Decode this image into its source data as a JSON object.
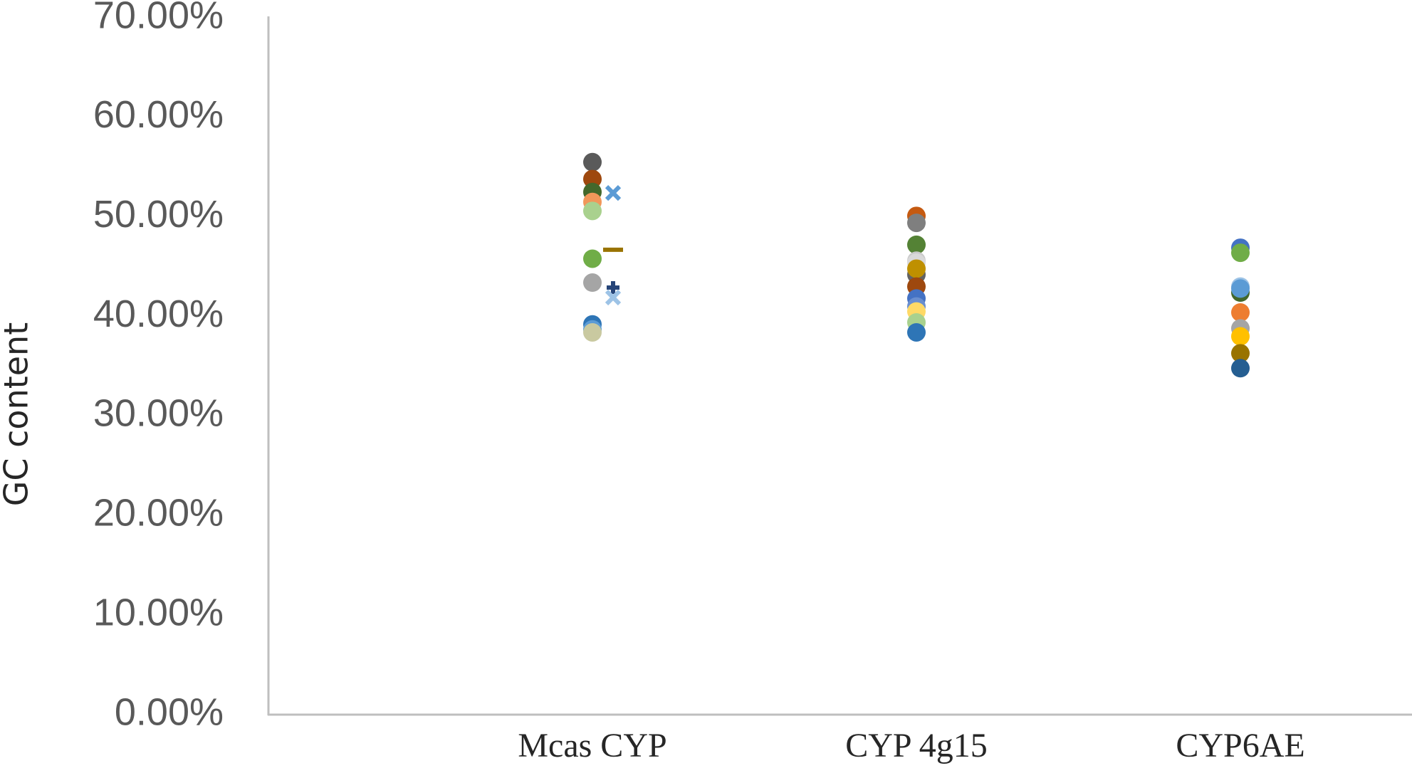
{
  "chart_data": {
    "type": "scatter",
    "y_label": "GC content",
    "categories": [
      "Mcas CYP",
      "CYP 4g15",
      "CYP6AE"
    ],
    "groups": [
      {
        "values": [
          55.5,
          53.8,
          52.5,
          51.5,
          50.6,
          45.8,
          43.4,
          39.2,
          38.7,
          38.4,
          52.4,
          46.7,
          42.9,
          41.9
        ],
        "colors": [
          "#5a5a5a",
          "#9e480e",
          "#43682b",
          "#f1975a",
          "#a9d18e",
          "#70ad47",
          "#a5a5a5",
          "#2e75b6",
          "#5b9bd5",
          "#c9c9a0",
          "#5b9bd5",
          "#997300",
          "#264478",
          "#9dc3e6"
        ],
        "markers": [
          "circle",
          "circle",
          "circle",
          "circle",
          "circle",
          "circle",
          "circle",
          "circle",
          "circle",
          "circle",
          "x",
          "dash",
          "plus",
          "x"
        ]
      },
      {
        "values": [
          50.1,
          49.4,
          47.2,
          45.6,
          45.4,
          44.2,
          44.8,
          43.0,
          41.8,
          41.0,
          40.5,
          39.4,
          38.4
        ],
        "colors": [
          "#c55a11",
          "#7f7f7f",
          "#548235",
          "#c9c9c9",
          "#d9d9d9",
          "#636363",
          "#bf9000",
          "#9e480e",
          "#4472c4",
          "#698ed0",
          "#ffd966",
          "#a9d18e",
          "#2e75b6"
        ],
        "markers": [
          "circle",
          "circle",
          "circle",
          "circle",
          "circle",
          "circle",
          "circle",
          "circle",
          "circle",
          "circle",
          "circle",
          "circle",
          "circle"
        ]
      },
      {
        "values": [
          46.9,
          46.4,
          42.4,
          43.0,
          42.8,
          40.4,
          38.8,
          38.0,
          36.3,
          34.8
        ],
        "colors": [
          "#4472c4",
          "#70ad47",
          "#43682b",
          "#9dc3e6",
          "#5b9bd5",
          "#ed7d31",
          "#a5a5a5",
          "#ffc000",
          "#997300",
          "#255e91"
        ],
        "markers": [
          "circle",
          "circle",
          "circle",
          "circle",
          "circle",
          "circle",
          "circle",
          "circle",
          "circle",
          "circle"
        ]
      }
    ],
    "ylim": [
      0,
      70
    ],
    "yticks": [
      {
        "value": 0,
        "label": "0.00%"
      },
      {
        "value": 10,
        "label": "10.00%"
      },
      {
        "value": 20,
        "label": "20.00%"
      },
      {
        "value": 30,
        "label": "30.00%"
      },
      {
        "value": 40,
        "label": "40.00%"
      },
      {
        "value": 50,
        "label": "50.00%"
      },
      {
        "value": 60,
        "label": "60.00%"
      },
      {
        "value": 70,
        "label": "70.00%"
      }
    ]
  }
}
